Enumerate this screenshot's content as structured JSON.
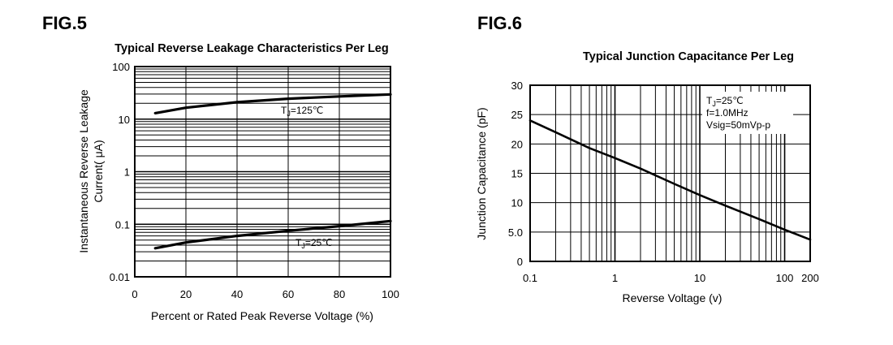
{
  "figures": [
    {
      "label": "FIG.5"
    },
    {
      "label": "FIG.6"
    }
  ],
  "chart_data": [
    {
      "type": "line",
      "title": "Typical Reverse Leakage Characteristics Per Leg",
      "xlabel": "Percent or Rated Peak Reverse Voltage (%)",
      "ylabel_lines": [
        "Instantaneous Reverse Leakage",
        "Current( μA)"
      ],
      "x_ticks": [
        0,
        20,
        40,
        60,
        80,
        100
      ],
      "y_ticks": [
        0.01,
        0.1,
        1,
        10,
        100
      ],
      "y_tick_labels": [
        "0.01",
        "0.1",
        "1",
        "10",
        "100"
      ],
      "xlim": [
        0,
        100
      ],
      "ylim": [
        0.01,
        100
      ],
      "y_scale": "log",
      "grid": true,
      "series": [
        {
          "name": "TJ=125°C",
          "label_main": "T",
          "label_sub": "J",
          "label_rest": "=125℃",
          "x": [
            8,
            20,
            40,
            60,
            80,
            100
          ],
          "y": [
            13,
            16.5,
            21,
            24.5,
            27,
            29.5
          ]
        },
        {
          "name": "TJ=25°C",
          "label_main": "T",
          "label_sub": "J",
          "label_rest": "=25℃",
          "x": [
            8,
            20,
            40,
            60,
            80,
            100
          ],
          "y": [
            0.035,
            0.045,
            0.06,
            0.075,
            0.092,
            0.115
          ]
        }
      ]
    },
    {
      "type": "line",
      "title": "Typical Junction Capacitance Per Leg",
      "xlabel": "Reverse Voltage (v)",
      "ylabel": "Junction Capacitance (pF)",
      "x_ticks": [
        0.1,
        1,
        10,
        100,
        200
      ],
      "x_tick_labels": [
        "0.1",
        "1",
        "10",
        "100",
        "200"
      ],
      "y_ticks": [
        0,
        5,
        10,
        15,
        20,
        25,
        30
      ],
      "y_tick_labels": [
        "0",
        "5.0",
        "10",
        "15",
        "20",
        "25",
        "30"
      ],
      "xlim": [
        0.1,
        200
      ],
      "ylim": [
        0,
        30
      ],
      "x_scale": "log",
      "grid": true,
      "annotation": {
        "line1_main": "T",
        "line1_sub": "J",
        "line1_rest": "=25℃",
        "line2": "f=1.0MHz",
        "line3": "Vsig=50mVp-p"
      },
      "series": [
        {
          "x": [
            0.1,
            0.2,
            0.5,
            1,
            2,
            5,
            10,
            20,
            50,
            100,
            200
          ],
          "y": [
            24,
            22,
            19.3,
            17.6,
            15.8,
            13.2,
            11.3,
            9.5,
            7.2,
            5.4,
            3.7
          ]
        }
      ]
    }
  ]
}
